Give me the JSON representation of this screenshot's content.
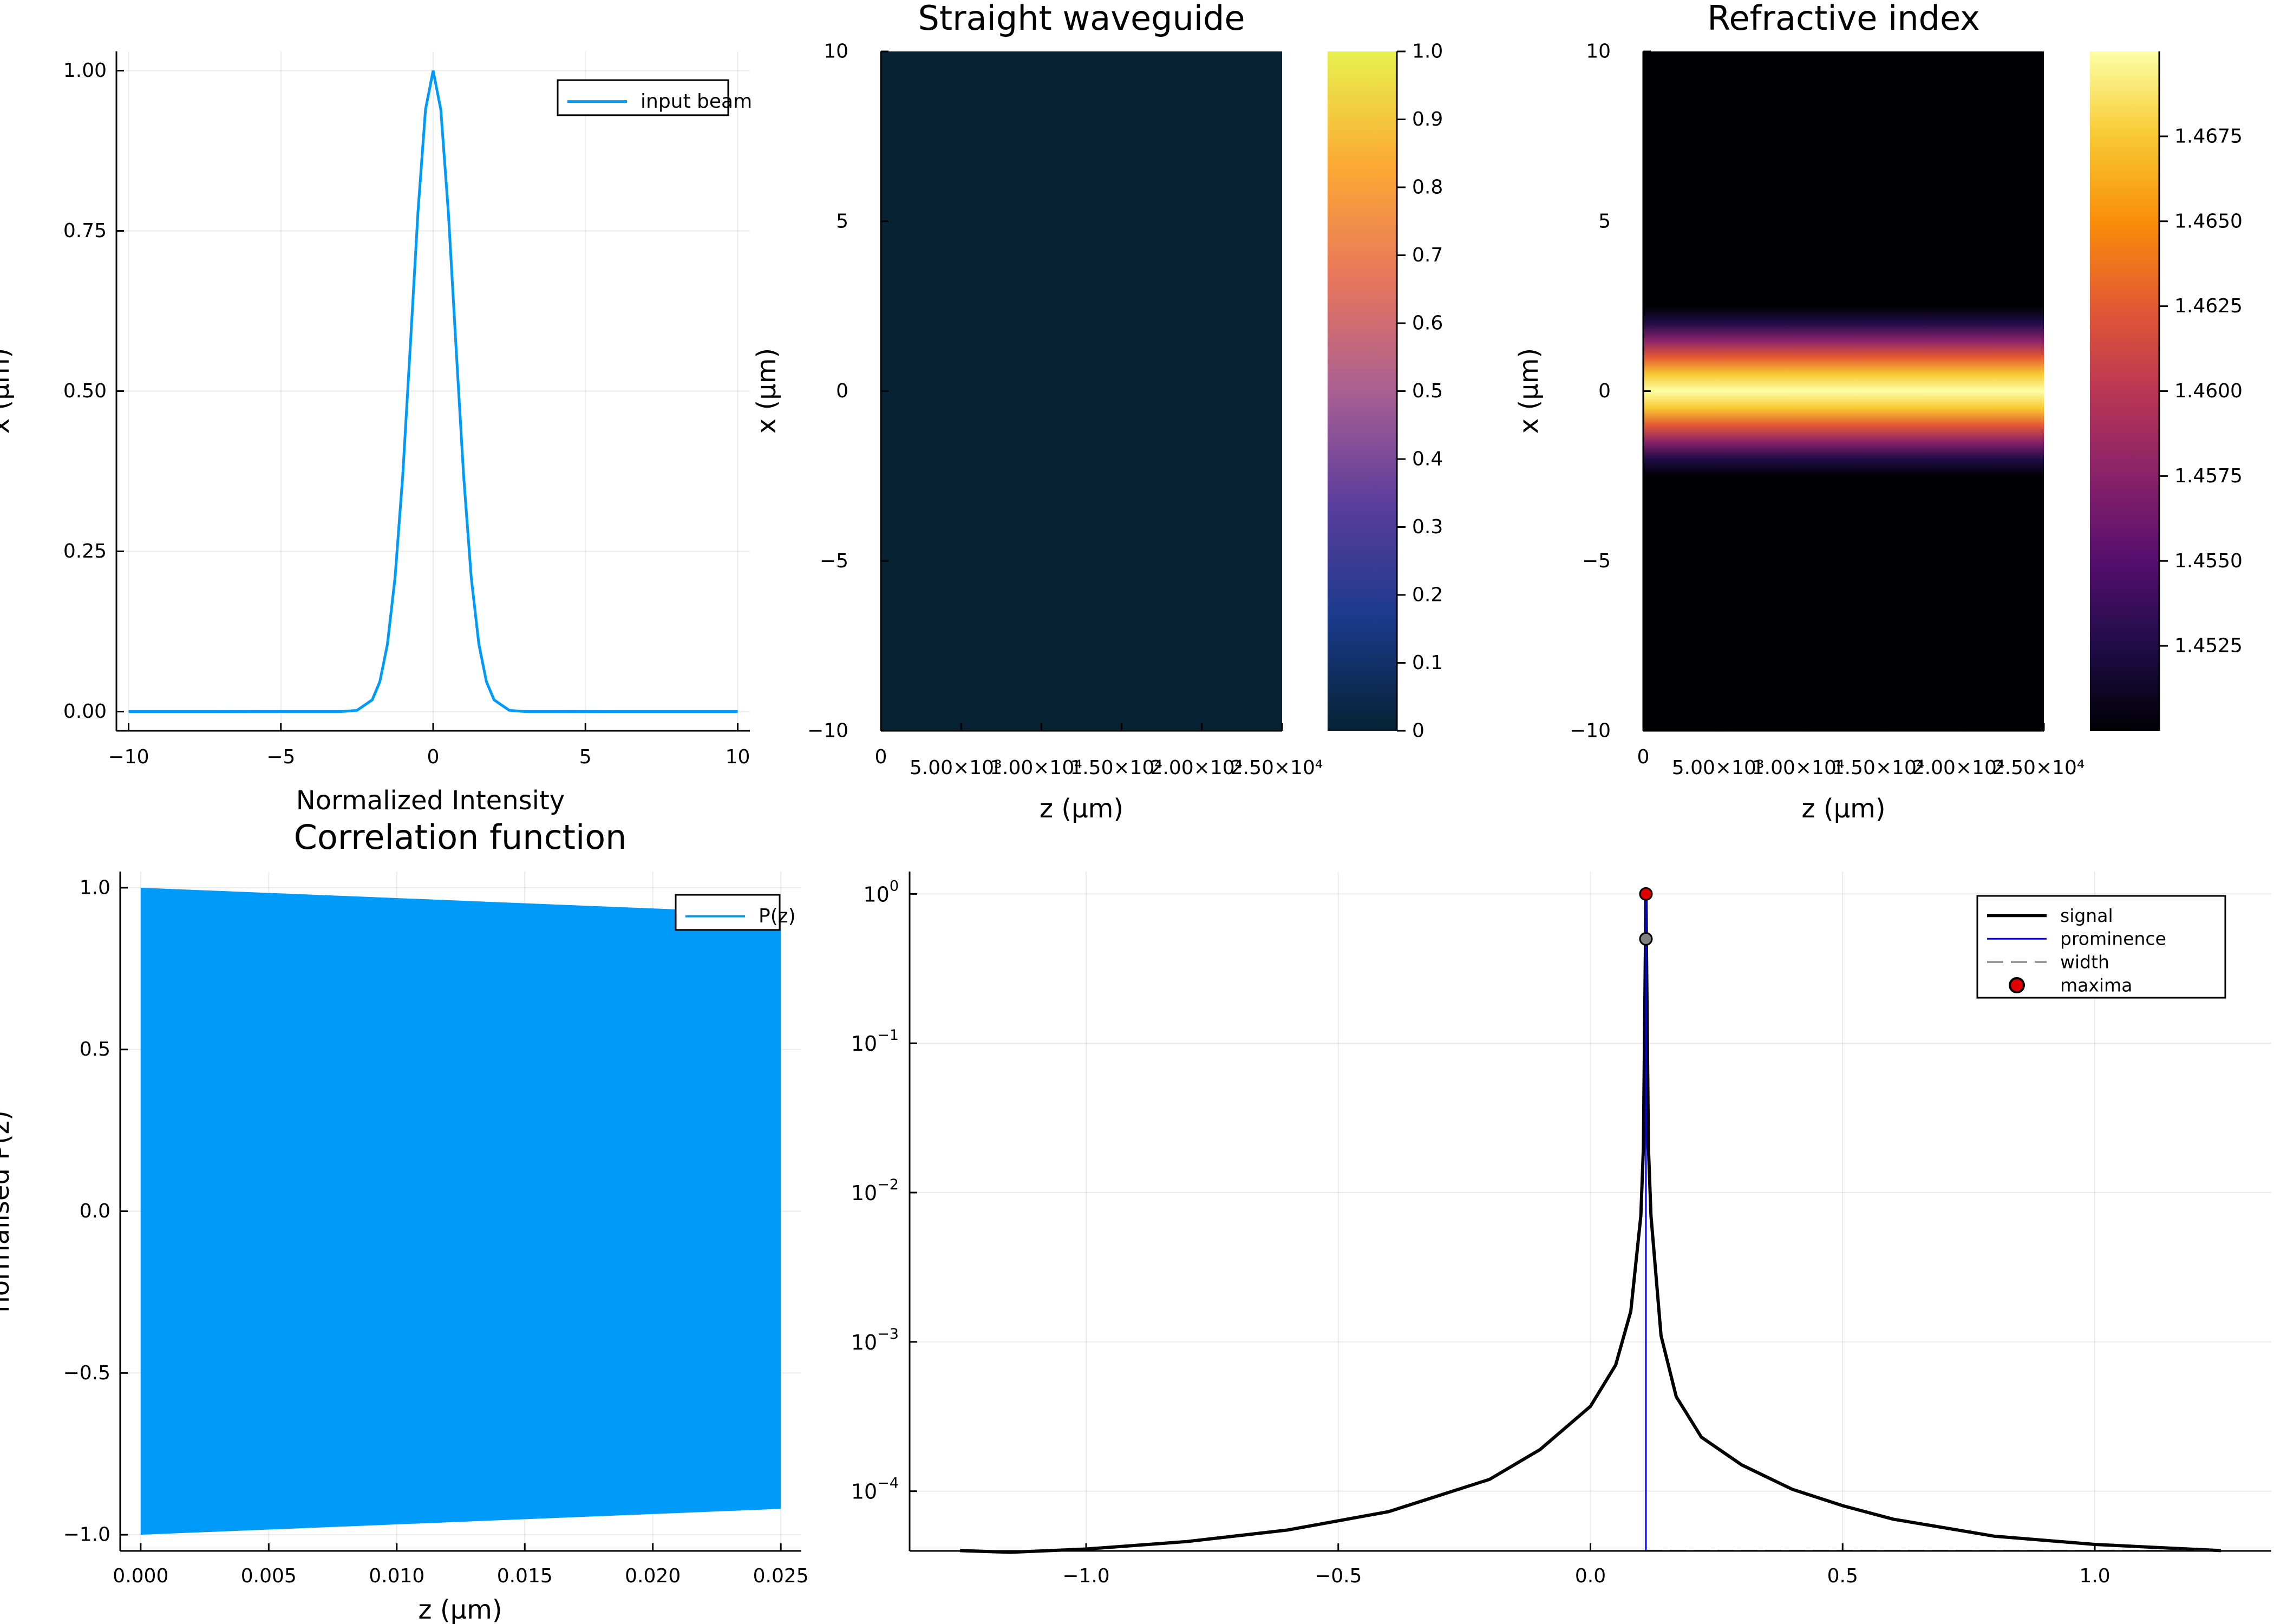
{
  "chart_data": [
    {
      "id": "p1",
      "type": "line",
      "title": "",
      "xlabel": "Normalized Intensity",
      "ylabel": "x (μm)",
      "xlim": [
        -10.4,
        10.4
      ],
      "ylim": [
        -0.03,
        1.03
      ],
      "xticks": [
        -10,
        -5,
        0,
        5,
        10
      ],
      "xtick_labels": [
        "−10",
        "−5",
        "0",
        "5",
        "10"
      ],
      "yticks": [
        0,
        0.25,
        0.5,
        0.75,
        1.0
      ],
      "ytick_labels": [
        "0.00",
        "0.25",
        "0.50",
        "0.75",
        "1.00"
      ],
      "grid": true,
      "legend": "top-right",
      "series": [
        {
          "name": "input beam",
          "color": "#009af9",
          "x": [
            -10,
            -3,
            -2.5,
            -2,
            -1.75,
            -1.5,
            -1.25,
            -1,
            -0.75,
            -0.5,
            -0.25,
            0,
            0.25,
            0.5,
            0.75,
            1,
            1.25,
            1.5,
            1.75,
            2,
            2.5,
            3,
            10
          ],
          "y": [
            0,
            0.0001,
            0.0019,
            0.0183,
            0.0468,
            0.1054,
            0.2096,
            0.3679,
            0.5698,
            0.7788,
            0.9394,
            1.0,
            0.9394,
            0.7788,
            0.5698,
            0.3679,
            0.2096,
            0.1054,
            0.0468,
            0.0183,
            0.0019,
            0.0001,
            0
          ]
        }
      ]
    },
    {
      "id": "p2",
      "type": "heatmap",
      "title": "Straight waveguide",
      "xlabel": "z (μm)",
      "ylabel": "x (μm)",
      "xlim": [
        0,
        25000
      ],
      "ylim": [
        -10,
        10
      ],
      "xticks": [
        0,
        5000,
        10000,
        15000,
        20000,
        25000
      ],
      "xtick_labels": [
        "0",
        "5.00×10³",
        "1.00×10⁴",
        "1.50×10⁴",
        "2.00×10⁴",
        "2.50×10⁴"
      ],
      "yticks": [
        -10,
        -5,
        0,
        5,
        10
      ],
      "ytick_labels": [
        "−10",
        "−5",
        "0",
        "5",
        "10"
      ],
      "fill_color": "#062233",
      "colorbar": {
        "range": [
          0,
          1
        ],
        "ticks": [
          0,
          0.1,
          0.2,
          0.3,
          0.4,
          0.5,
          0.6,
          0.7,
          0.8,
          0.9,
          1.0
        ],
        "tick_labels": [
          "0",
          "0.1",
          "0.2",
          "0.3",
          "0.4",
          "0.5",
          "0.6",
          "0.7",
          "0.8",
          "0.9",
          "1.0"
        ],
        "colors": [
          "#062233",
          "#1b3a8c",
          "#5a3d9d",
          "#a95f92",
          "#e8765c",
          "#fcaa33",
          "#e7f14f"
        ]
      }
    },
    {
      "id": "p3",
      "type": "heatmap",
      "title": "Refractive index",
      "xlabel": "z (μm)",
      "ylabel": "x (μm)",
      "xlim": [
        0,
        25000
      ],
      "ylim": [
        -10,
        10
      ],
      "xticks": [
        0,
        5000,
        10000,
        15000,
        20000,
        25000
      ],
      "xtick_labels": [
        "0",
        "5.00×10³",
        "1.00×10⁴",
        "1.50×10⁴",
        "2.00×10⁴",
        "2.50×10⁴"
      ],
      "yticks": [
        -10,
        -5,
        0,
        5,
        10
      ],
      "ytick_labels": [
        "−10",
        "−5",
        "0",
        "5",
        "10"
      ],
      "profile": {
        "x": [
          -10,
          -4,
          -3,
          -2.5,
          -2,
          -1.5,
          -1,
          -0.5,
          0,
          0.5,
          1,
          1.5,
          2,
          2.5,
          3,
          4,
          10
        ],
        "n": [
          1.45,
          1.45,
          1.4501,
          1.4508,
          1.4529,
          1.4578,
          1.4637,
          1.4683,
          1.47,
          1.4683,
          1.4637,
          1.4578,
          1.4529,
          1.4508,
          1.4501,
          1.45,
          1.45
        ]
      },
      "colorbar": {
        "range": [
          1.45,
          1.47
        ],
        "ticks": [
          1.4525,
          1.455,
          1.4575,
          1.46,
          1.4625,
          1.465,
          1.4675
        ],
        "tick_labels": [
          "1.4525",
          "1.4550",
          "1.4575",
          "1.4600",
          "1.4625",
          "1.4650",
          "1.4675"
        ],
        "colors": [
          "#000004",
          "#1f0c48",
          "#550f6d",
          "#88226a",
          "#ba3655",
          "#e35933",
          "#f98e09",
          "#f8c932",
          "#fcffa4"
        ]
      }
    },
    {
      "id": "p4",
      "type": "line",
      "title": "Correlation function",
      "xlabel": "z (μm)",
      "ylabel": "normalised P(z)",
      "xlim": [
        -0.0008,
        0.0258
      ],
      "ylim": [
        -1.05,
        1.05
      ],
      "xticks": [
        0,
        0.005,
        0.01,
        0.015,
        0.02,
        0.025
      ],
      "xtick_labels": [
        "0.000",
        "0.005",
        "0.010",
        "0.015",
        "0.020",
        "0.025"
      ],
      "yticks": [
        -1,
        -0.5,
        0,
        0.5,
        1
      ],
      "ytick_labels": [
        "−1.0",
        "−0.5",
        "0.0",
        "0.5",
        "1.0"
      ],
      "grid": true,
      "legend": "top-right",
      "series": [
        {
          "name": "P(z)",
          "color": "#009af9",
          "envelope": {
            "x": [
              0,
              0.025
            ],
            "upper": [
              1.0,
              0.92
            ],
            "lower": [
              -1.0,
              -0.92
            ]
          }
        }
      ]
    },
    {
      "id": "p5",
      "type": "line",
      "title": "",
      "xlabel": "",
      "ylabel": "",
      "yscale": "log",
      "xlim": [
        -1.35,
        1.35
      ],
      "ylim_log10": [
        -4.4,
        0.15
      ],
      "xticks": [
        -1,
        -0.5,
        0,
        0.5,
        1
      ],
      "xtick_labels": [
        "−1.0",
        "−0.5",
        "0.0",
        "0.5",
        "1.0"
      ],
      "yticks_log10": [
        -4,
        -3,
        -2,
        -1,
        0
      ],
      "ytick_base": "10",
      "ytick_exponents": [
        "−4",
        "−3",
        "−2",
        "−1",
        "0"
      ],
      "grid": true,
      "legend": "top-right",
      "series": [
        {
          "name": "signal",
          "color": "#000000",
          "x": [
            -1.25,
            -1.15,
            -1.0,
            -0.8,
            -0.6,
            -0.4,
            -0.2,
            -0.1,
            0.0,
            0.05,
            0.08,
            0.1,
            0.105,
            0.11,
            0.115,
            0.12,
            0.14,
            0.17,
            0.22,
            0.3,
            0.4,
            0.5,
            0.6,
            0.8,
            1.0,
            1.25
          ],
          "y": [
            4e-05,
            3.9e-05,
            4.1e-05,
            4.6e-05,
            5.5e-05,
            7.3e-05,
            0.00012,
            0.00019,
            0.00037,
            0.0007,
            0.0016,
            0.007,
            0.02,
            1.0,
            0.02,
            0.007,
            0.0011,
            0.00043,
            0.00023,
            0.00015,
            0.000103,
            8e-05,
            6.5e-05,
            5e-05,
            4.4e-05,
            4e-05
          ]
        },
        {
          "name": "prominence",
          "color": "#0000ff",
          "x": [
            0.11,
            0.11
          ],
          "y": [
            4e-05,
            1.0
          ]
        },
        {
          "name": "width",
          "color": "#6f6fff",
          "x": [
            0.11,
            1.25
          ],
          "y": [
            4e-05,
            4e-05
          ]
        },
        {
          "name": "maxima",
          "color": "#e00000",
          "x": [
            0.11
          ],
          "y": [
            1.0
          ]
        },
        {
          "name": "",
          "color": "#808080",
          "x": [
            0.11
          ],
          "y": [
            0.5
          ]
        }
      ]
    }
  ]
}
